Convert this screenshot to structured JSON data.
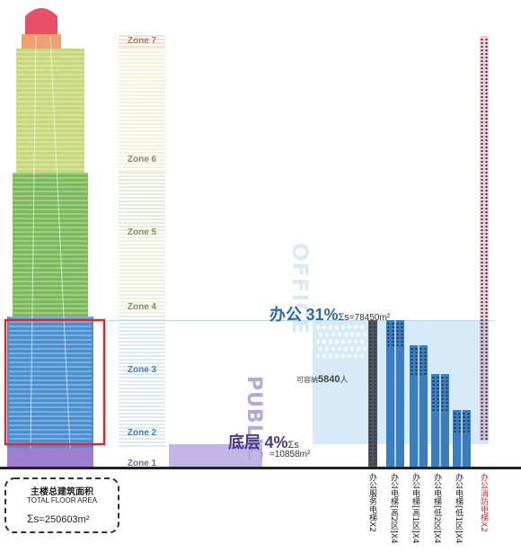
{
  "zones": [
    {
      "label": "Zone 7",
      "color": "#f0a070"
    },
    {
      "label": "Zone 6",
      "color": "#c6d87a"
    },
    {
      "label": "Zone 5",
      "color": "#7ab85a"
    },
    {
      "label": "Zone 4",
      "color": "#a8cc6e"
    },
    {
      "label": "Zone 3",
      "color": "#4a90d0"
    },
    {
      "label": "Zone 2",
      "color": "#5a9ad8"
    },
    {
      "label": "Zone 1",
      "color": "#9d7fd0"
    }
  ],
  "office": {
    "vertical_label": "OFFICE",
    "title": "办公",
    "percent": "31%",
    "sum_symbol": "Σs",
    "sum_value": "=78450m²",
    "capacity_label": "可容纳",
    "capacity_value": "5840",
    "capacity_unit": "人"
  },
  "public": {
    "vertical_label": "PUBLIC",
    "title": "底层",
    "percent": "4%",
    "sum_symbol": "Σs",
    "sum_value": "=10858m²"
  },
  "total": {
    "label_cn": "主楼总建筑面积",
    "label_en": "TOTAL FLOOR AREA",
    "sum_symbol": "Σs",
    "sum_value": "=250603m²"
  },
  "elevators": [
    {
      "label": "办公服务电梯X2",
      "color": "#555555"
    },
    {
      "label": "办公电梯[高2区]X4",
      "color": "#3a7ec0"
    },
    {
      "label": "办公电梯[高1区]X4",
      "color": "#3a7ec0"
    },
    {
      "label": "办公电梯[低2区]X4",
      "color": "#3a7ec0"
    },
    {
      "label": "办公电梯[低1区]X4",
      "color": "#3a7ec0"
    },
    {
      "label": "办公消防电梯X2",
      "color": "#d94040"
    }
  ],
  "colors": {
    "highlight": "#e0282a",
    "office_band": "#cfe6f7",
    "public_band": "#b9a8e0",
    "ground": "#222222"
  }
}
